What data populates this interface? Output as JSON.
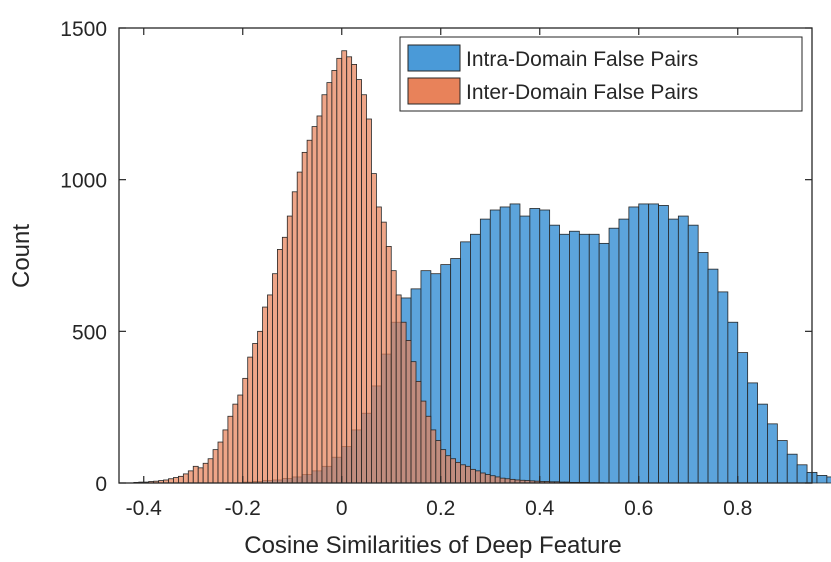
{
  "chart_data": {
    "type": "histogram",
    "title": "",
    "xlabel": "Cosine Similarities of Deep Feature",
    "ylabel": "Count",
    "xlim": [
      -0.45,
      0.95
    ],
    "ylim": [
      0,
      1500
    ],
    "x_ticks": [
      -0.4,
      -0.2,
      0,
      0.2,
      0.4,
      0.6,
      0.8
    ],
    "x_tick_labels": [
      "-0.4",
      "-0.2",
      "0",
      "0.2",
      "0.4",
      "0.6",
      "0.8"
    ],
    "y_ticks": [
      0,
      500,
      1000,
      1500
    ],
    "y_tick_labels": [
      "0",
      "500",
      "1000",
      "1500"
    ],
    "grid": false,
    "legend_position": "top-right",
    "series": [
      {
        "name": "Intra-Domain False Pairs",
        "color": "#4a9ad8",
        "bin_width": 0.02,
        "bin_start": -0.2,
        "values": [
          3,
          5,
          8,
          10,
          15,
          20,
          28,
          40,
          55,
          85,
          120,
          175,
          230,
          320,
          425,
          530,
          610,
          640,
          700,
          690,
          720,
          740,
          795,
          820,
          870,
          900,
          910,
          920,
          880,
          905,
          900,
          850,
          820,
          830,
          820,
          820,
          790,
          840,
          870,
          910,
          920,
          920,
          915,
          870,
          880,
          850,
          760,
          705,
          630,
          530,
          430,
          330,
          260,
          195,
          140,
          95,
          60,
          35,
          25,
          20,
          12,
          8,
          5,
          3,
          2,
          1
        ]
      },
      {
        "name": "Inter-Domain False Pairs",
        "color": "#e8825a",
        "bin_width": 0.01,
        "bin_start": -0.42,
        "values": [
          2,
          3,
          3,
          5,
          6,
          8,
          10,
          14,
          18,
          22,
          30,
          40,
          55,
          50,
          65,
          80,
          110,
          135,
          175,
          220,
          260,
          290,
          345,
          415,
          460,
          500,
          580,
          620,
          690,
          770,
          810,
          880,
          960,
          1025,
          1090,
          1130,
          1175,
          1210,
          1280,
          1320,
          1360,
          1400,
          1425,
          1405,
          1380,
          1330,
          1280,
          1200,
          1020,
          910,
          860,
          780,
          700,
          620,
          530,
          470,
          400,
          335,
          270,
          220,
          175,
          140,
          110,
          90,
          80,
          68,
          60,
          55,
          45,
          40,
          33,
          28,
          24,
          20,
          16,
          14,
          12,
          10,
          9,
          8,
          7,
          6,
          5,
          5,
          4,
          4,
          3,
          3,
          2,
          2,
          2,
          2,
          1,
          1,
          1
        ]
      }
    ]
  }
}
